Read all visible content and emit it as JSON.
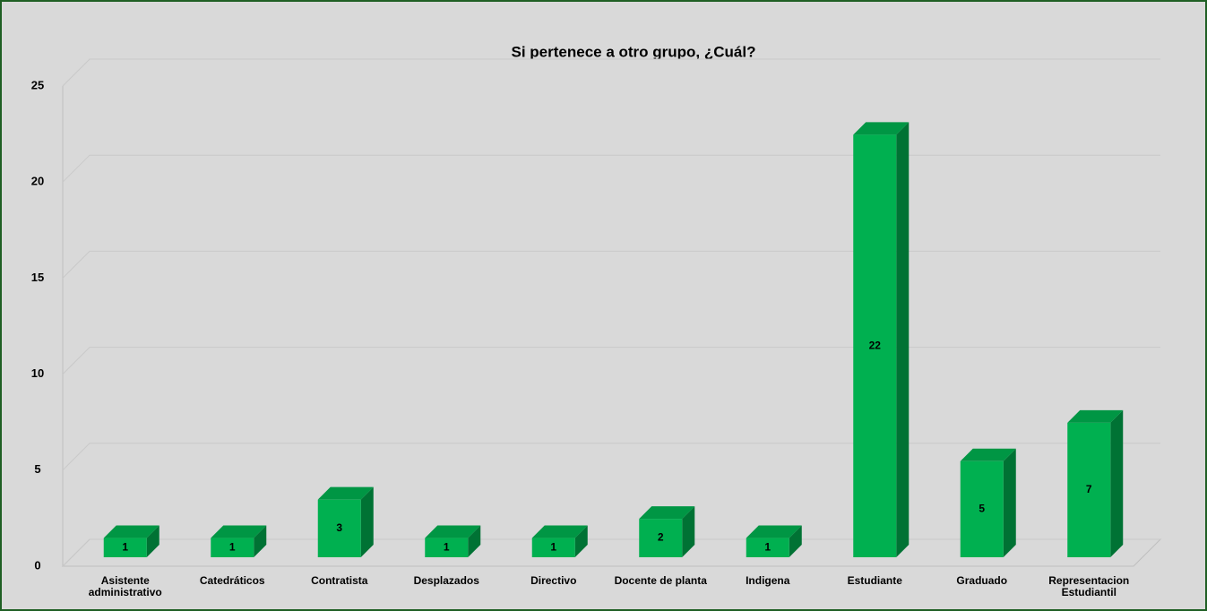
{
  "chart_data": {
    "type": "bar3d",
    "title": "Si pertenece a otro grupo, ¿Cuál?",
    "categories": [
      "Asistente administrativo",
      "Catedráticos",
      "Contratista",
      "Desplazados",
      "Directivo",
      "Docente de planta",
      "Indigena",
      "Estudiante",
      "Graduado",
      "Representacion Estudiantil"
    ],
    "values": [
      1,
      1,
      3,
      1,
      1,
      2,
      1,
      22,
      5,
      7
    ],
    "color": "#00b050",
    "ylim": [
      0,
      25
    ],
    "yticks": [
      0,
      5,
      10,
      15,
      20,
      25
    ],
    "grid": true
  }
}
